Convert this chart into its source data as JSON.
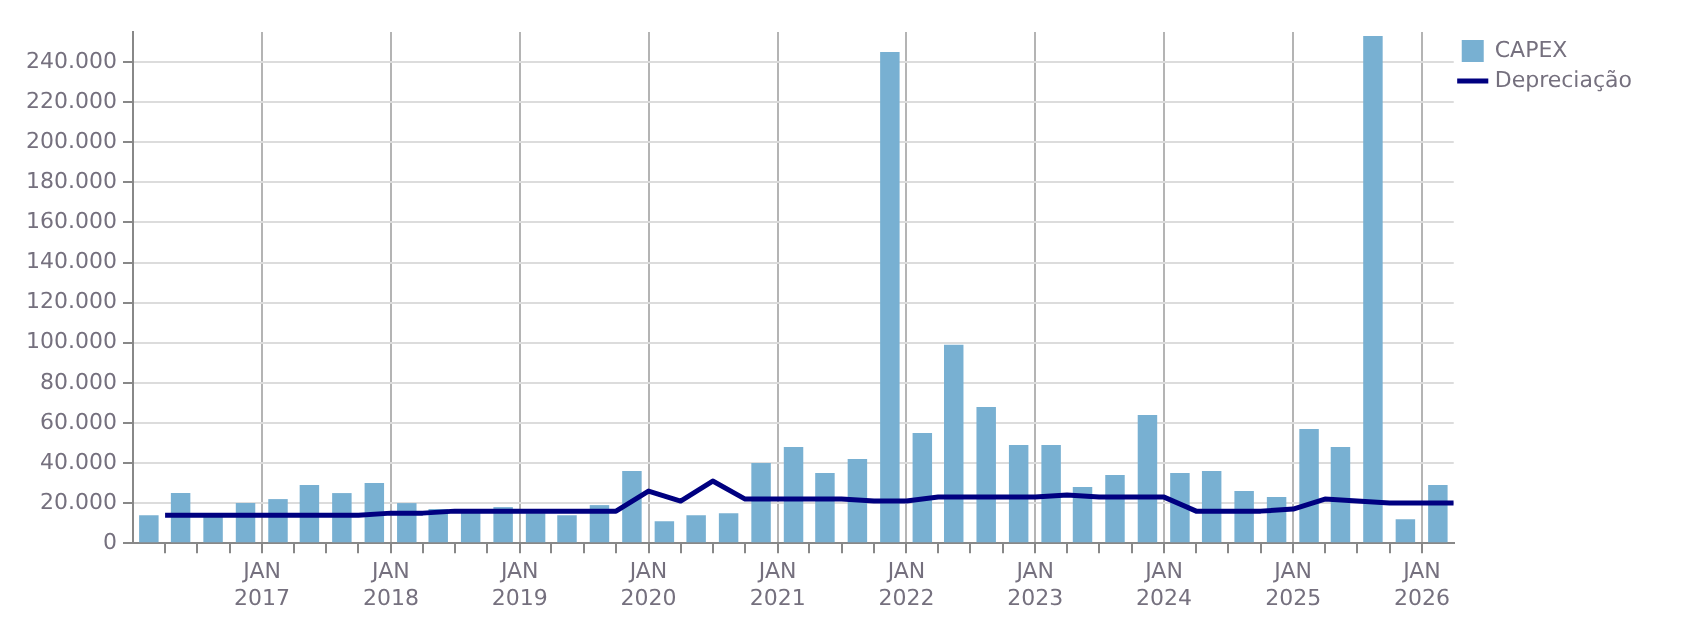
{
  "chart_data": {
    "type": "bar",
    "x": [
      "2016-02-15",
      "2016-05-15",
      "2016-08-15",
      "2016-11-15",
      "2017-02-15",
      "2017-05-15",
      "2017-08-15",
      "2017-11-15",
      "2018-02-15",
      "2018-05-15",
      "2018-08-15",
      "2018-11-15",
      "2019-02-15",
      "2019-05-15",
      "2019-08-15",
      "2019-11-15",
      "2020-02-15",
      "2020-05-15",
      "2020-08-15",
      "2020-11-15",
      "2021-02-15",
      "2021-05-15",
      "2021-08-15",
      "2021-11-15",
      "2022-02-15",
      "2022-05-15",
      "2022-08-15",
      "2022-11-15",
      "2023-02-15",
      "2023-05-15",
      "2023-08-15",
      "2023-11-15",
      "2024-02-15",
      "2024-05-15",
      "2024-08-15",
      "2024-11-15",
      "2025-02-15",
      "2025-05-15",
      "2025-08-15",
      "2025-11-15",
      "2026-02-15"
    ],
    "series": [
      {
        "name": "CAPEX",
        "color": "#78b0d2",
        "values": [
          14000,
          25000,
          14000,
          20000,
          22000,
          29000,
          25000,
          30000,
          20000,
          17000,
          17000,
          18000,
          15000,
          14000,
          19000,
          36000,
          11000,
          14000,
          15000,
          40000,
          48000,
          35000,
          42000,
          245000,
          55000,
          99000,
          68000,
          49000,
          49000,
          28000,
          34000,
          64000,
          35000,
          36000,
          26000,
          23000,
          57000,
          48000,
          253000,
          12000,
          29000
        ]
      },
      {
        "name": "Depreciação",
        "type": "line",
        "color": "#000080",
        "x": [
          "2016-04-01",
          "2016-07-01",
          "2016-10-01",
          "2017-01-01",
          "2017-04-01",
          "2017-07-01",
          "2017-10-01",
          "2018-01-01",
          "2018-04-01",
          "2018-07-01",
          "2018-10-01",
          "2019-01-01",
          "2019-04-01",
          "2019-07-01",
          "2019-10-01",
          "2020-01-01",
          "2020-04-01",
          "2020-07-01",
          "2020-10-01",
          "2021-01-01",
          "2021-04-01",
          "2021-07-01",
          "2021-10-01",
          "2022-01-01",
          "2022-04-01",
          "2022-07-01",
          "2022-10-01",
          "2023-01-01",
          "2023-04-01",
          "2023-07-01",
          "2023-10-01",
          "2024-01-01",
          "2024-04-01",
          "2024-07-01",
          "2024-10-01",
          "2025-01-01",
          "2025-04-01",
          "2025-07-01",
          "2025-10-01",
          "2026-01-01",
          "2026-04-01"
        ],
        "values": [
          14000,
          14000,
          14000,
          14000,
          14000,
          14000,
          14000,
          15000,
          15000,
          16000,
          16000,
          16000,
          16000,
          16000,
          16000,
          26000,
          21000,
          31000,
          22000,
          22000,
          22000,
          22000,
          21000,
          21000,
          23000,
          23000,
          23000,
          23000,
          24000,
          23000,
          23000,
          23000,
          16000,
          16000,
          16000,
          17000,
          22000,
          21000,
          20000,
          20000,
          20000
        ]
      }
    ],
    "xlim": [
      "2016-01-01",
      "2026-04-01"
    ],
    "xticks": [
      {
        "value": "2016-04-01",
        "label": null
      },
      {
        "value": "2016-07-01",
        "label": null
      },
      {
        "value": "2016-10-01",
        "label": null
      },
      {
        "value": "2017-01-01",
        "label": "JAN 2017"
      },
      {
        "value": "2017-04-01",
        "label": null
      },
      {
        "value": "2017-07-01",
        "label": null
      },
      {
        "value": "2017-10-01",
        "label": null
      },
      {
        "value": "2018-01-01",
        "label": "JAN 2018"
      },
      {
        "value": "2018-04-01",
        "label": null
      },
      {
        "value": "2018-07-01",
        "label": null
      },
      {
        "value": "2018-10-01",
        "label": null
      },
      {
        "value": "2019-01-01",
        "label": "JAN 2019"
      },
      {
        "value": "2019-04-01",
        "label": null
      },
      {
        "value": "2019-07-01",
        "label": null
      },
      {
        "value": "2019-10-01",
        "label": null
      },
      {
        "value": "2020-01-01",
        "label": "JAN 2020"
      },
      {
        "value": "2020-04-01",
        "label": null
      },
      {
        "value": "2020-07-01",
        "label": null
      },
      {
        "value": "2020-10-01",
        "label": null
      },
      {
        "value": "2021-01-01",
        "label": "JAN 2021"
      },
      {
        "value": "2021-04-01",
        "label": null
      },
      {
        "value": "2021-07-01",
        "label": null
      },
      {
        "value": "2021-10-01",
        "label": null
      },
      {
        "value": "2022-01-01",
        "label": "JAN 2022"
      },
      {
        "value": "2022-04-01",
        "label": null
      },
      {
        "value": "2022-07-01",
        "label": null
      },
      {
        "value": "2022-10-01",
        "label": null
      },
      {
        "value": "2023-01-01",
        "label": "JAN 2023"
      },
      {
        "value": "2023-04-01",
        "label": null
      },
      {
        "value": "2023-07-01",
        "label": null
      },
      {
        "value": "2023-10-01",
        "label": null
      },
      {
        "value": "2024-01-01",
        "label": "JAN 2024"
      },
      {
        "value": "2024-04-01",
        "label": null
      },
      {
        "value": "2024-07-01",
        "label": null
      },
      {
        "value": "2024-10-01",
        "label": null
      },
      {
        "value": "2025-01-01",
        "label": "JAN 2025"
      },
      {
        "value": "2025-04-01",
        "label": null
      },
      {
        "value": "2025-07-01",
        "label": null
      },
      {
        "value": "2025-10-01",
        "label": null
      },
      {
        "value": "2026-01-01",
        "label": "JAN 2026"
      }
    ],
    "ylim": [
      0,
      255000
    ],
    "yticks": [
      {
        "value": 0,
        "label": "0"
      },
      {
        "value": 20000,
        "label": "20.000"
      },
      {
        "value": 40000,
        "label": "40.000"
      },
      {
        "value": 60000,
        "label": "60.000"
      },
      {
        "value": 80000,
        "label": "80.000"
      },
      {
        "value": 100000,
        "label": "100.000"
      },
      {
        "value": 120000,
        "label": "120.000"
      },
      {
        "value": 140000,
        "label": "140.000"
      },
      {
        "value": 160000,
        "label": "160.000"
      },
      {
        "value": 180000,
        "label": "180.000"
      },
      {
        "value": 200000,
        "label": "200.000"
      },
      {
        "value": 220000,
        "label": "220.000"
      },
      {
        "value": 240000,
        "label": "240.000"
      }
    ],
    "grid": true,
    "legend": "top right",
    "marker": "none",
    "line_style": "solid"
  }
}
